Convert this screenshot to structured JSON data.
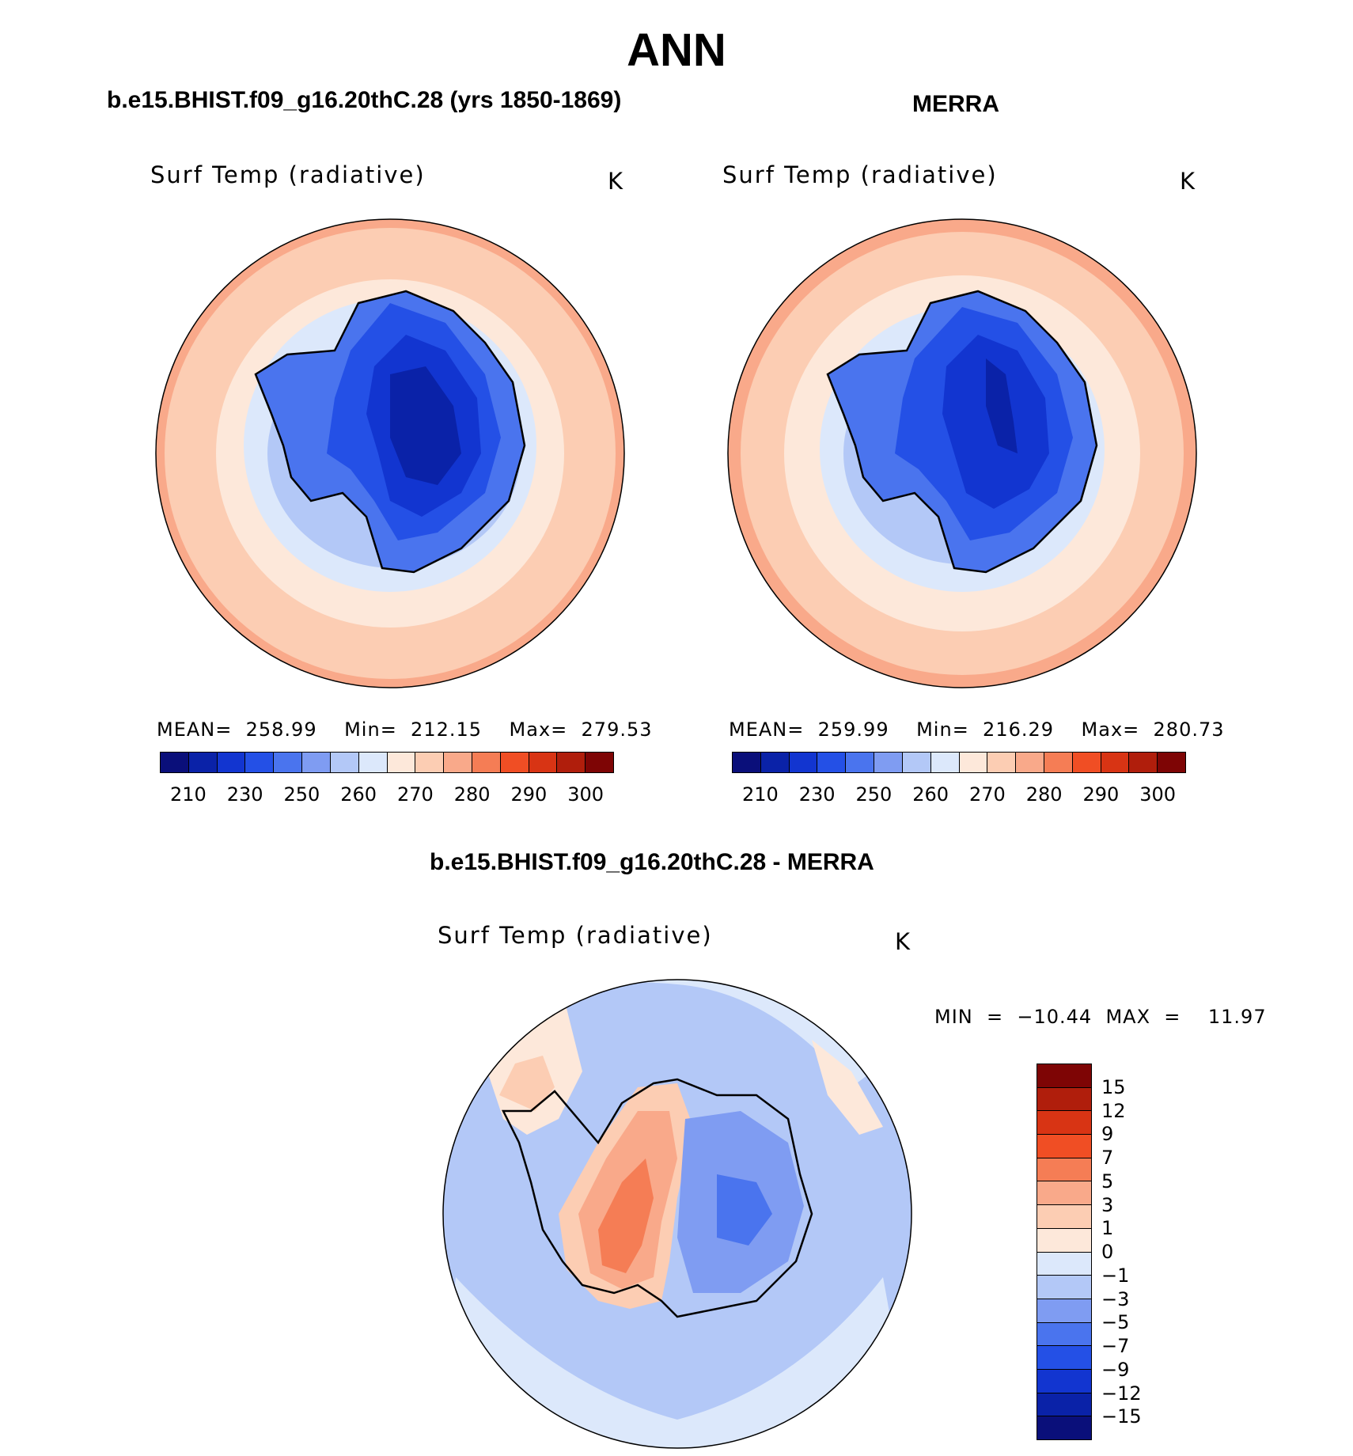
{
  "title": "ANN",
  "units_label": "K",
  "variable_label": "Surf Temp (radiative)",
  "panels": [
    {
      "title": "b.e15.BHIST.f09_g16.20thC.28 (yrs 1850-1869)",
      "stats": "MEAN=  258.99    Min=  212.15    Max=  279.53"
    },
    {
      "title": "MERRA",
      "stats": "MEAN=  259.99    Min=  216.29    Max=  280.73"
    }
  ],
  "diff_panel": {
    "title": "b.e15.BHIST.f09_g16.20thC.28 - MERRA",
    "stats": "MIN  =  −10.44  MAX  =    11.97"
  },
  "abs_colorbar": {
    "colors": [
      "#0a0f7a",
      "#0a22a8",
      "#1235d0",
      "#2450e6",
      "#4a74ee",
      "#7f9cf2",
      "#b3c8f7",
      "#dce8fb",
      "#fde8da",
      "#fccdb3",
      "#f9a98a",
      "#f57d55",
      "#f04e24",
      "#d83414",
      "#b01e0c",
      "#7e0505"
    ],
    "tick_labels": [
      "210",
      "230",
      "250",
      "260",
      "270",
      "280",
      "290",
      "300"
    ]
  },
  "diff_colorbar": {
    "colors": [
      "#7e0505",
      "#b01e0c",
      "#d83414",
      "#f04e24",
      "#f57d55",
      "#f9a98a",
      "#fccdb3",
      "#fde8da",
      "#dce8fb",
      "#b3c8f7",
      "#7f9cf2",
      "#4a74ee",
      "#2450e6",
      "#1235d0",
      "#0a22a8",
      "#0a0f7a"
    ],
    "tick_labels": [
      "15",
      "12",
      "9",
      "7",
      "5",
      "3",
      "1",
      "0",
      "−1",
      "−3",
      "−5",
      "−7",
      "−9",
      "−12",
      "−15"
    ]
  }
}
